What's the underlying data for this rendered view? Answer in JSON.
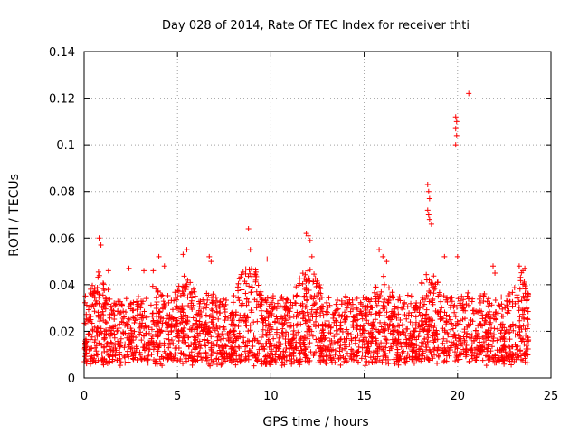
{
  "chart_data": {
    "type": "scatter",
    "title": "Day 028 of 2014, Rate Of TEC Index for receiver thti",
    "xlabel": "GPS time / hours",
    "ylabel": "ROTI / TECUs",
    "xlim": [
      0,
      25
    ],
    "ylim": [
      0,
      0.14
    ],
    "x_ticks": [
      0,
      5,
      10,
      15,
      20,
      25
    ],
    "x_tick_labels": [
      "0",
      "5",
      "10",
      "15",
      "20",
      "25"
    ],
    "y_ticks": [
      0,
      0.02,
      0.04,
      0.06,
      0.08,
      0.1,
      0.12,
      0.14
    ],
    "y_tick_labels": [
      "0",
      "0.02",
      "0.04",
      "0.06",
      "0.08",
      "0.1",
      "0.12",
      "0.14"
    ],
    "grid": true,
    "marker": "plus",
    "marker_color": "#ff0000",
    "series": [
      {
        "name": "ROTI",
        "band": {
          "x_start": 0.0,
          "x_end": 23.8,
          "typical_min": 0.007,
          "typical_max": 0.035
        },
        "points": [
          [
            0.8,
            0.06
          ],
          [
            0.9,
            0.057
          ],
          [
            1.3,
            0.046
          ],
          [
            2.4,
            0.047
          ],
          [
            3.2,
            0.046
          ],
          [
            3.7,
            0.046
          ],
          [
            4.0,
            0.052
          ],
          [
            4.3,
            0.048
          ],
          [
            5.3,
            0.053
          ],
          [
            5.5,
            0.055
          ],
          [
            6.7,
            0.052
          ],
          [
            6.8,
            0.05
          ],
          [
            8.8,
            0.064
          ],
          [
            8.9,
            0.055
          ],
          [
            9.8,
            0.051
          ],
          [
            11.9,
            0.062
          ],
          [
            12.0,
            0.061
          ],
          [
            12.1,
            0.059
          ],
          [
            12.2,
            0.052
          ],
          [
            14.0,
            0.035
          ],
          [
            15.8,
            0.055
          ],
          [
            16.0,
            0.052
          ],
          [
            16.2,
            0.05
          ],
          [
            18.4,
            0.083
          ],
          [
            18.45,
            0.08
          ],
          [
            18.5,
            0.077
          ],
          [
            18.4,
            0.072
          ],
          [
            18.45,
            0.07
          ],
          [
            18.5,
            0.068
          ],
          [
            18.6,
            0.066
          ],
          [
            19.3,
            0.052
          ],
          [
            19.9,
            0.112
          ],
          [
            19.95,
            0.11
          ],
          [
            19.9,
            0.107
          ],
          [
            19.95,
            0.104
          ],
          [
            19.9,
            0.1
          ],
          [
            20.0,
            0.052
          ],
          [
            20.6,
            0.122
          ],
          [
            21.9,
            0.048
          ],
          [
            22.0,
            0.045
          ],
          [
            23.3,
            0.048
          ],
          [
            23.5,
            0.046
          ],
          [
            23.6,
            0.047
          ]
        ]
      }
    ]
  }
}
